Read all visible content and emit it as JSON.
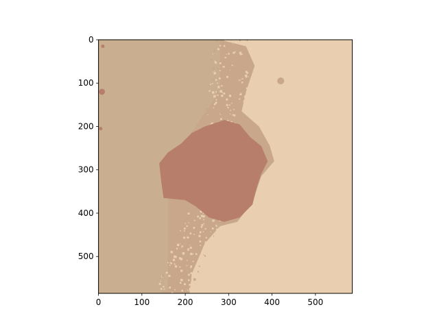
{
  "chart_data": {
    "type": "heatmap",
    "title": "",
    "xlabel": "",
    "ylabel": "",
    "xlim": [
      0,
      585
    ],
    "ylim": [
      585,
      0
    ],
    "xticks": [
      0,
      100,
      200,
      300,
      400,
      500
    ],
    "yticks": [
      0,
      100,
      200,
      300,
      400,
      500
    ],
    "grid": false,
    "legend": "none",
    "image_colors": {
      "left_band": "#c9ae90",
      "right_region": "#e9cfb0",
      "transition": "#c8a78a",
      "lesion_core": "#b77e6c"
    },
    "regions": {
      "left_band_right_edge": [
        [
          0,
          290
        ],
        [
          80,
          290
        ],
        [
          160,
          275
        ],
        [
          260,
          270
        ],
        [
          340,
          255
        ],
        [
          420,
          225
        ],
        [
          500,
          190
        ],
        [
          585,
          160
        ]
      ],
      "transition_halo": [
        [
          280,
          0
        ],
        [
          340,
          15
        ],
        [
          360,
          60
        ],
        [
          340,
          120
        ],
        [
          330,
          165
        ],
        [
          370,
          200
        ],
        [
          395,
          245
        ],
        [
          405,
          280
        ],
        [
          375,
          315
        ],
        [
          355,
          375
        ],
        [
          320,
          420
        ],
        [
          280,
          430
        ],
        [
          245,
          470
        ],
        [
          215,
          540
        ],
        [
          210,
          585
        ],
        [
          160,
          585
        ],
        [
          160,
          300
        ],
        [
          230,
          190
        ],
        [
          280,
          120
        ]
      ],
      "lesion_core": [
        [
          245,
          200
        ],
        [
          290,
          185
        ],
        [
          325,
          195
        ],
        [
          350,
          225
        ],
        [
          375,
          245
        ],
        [
          390,
          280
        ],
        [
          375,
          310
        ],
        [
          365,
          340
        ],
        [
          355,
          380
        ],
        [
          325,
          410
        ],
        [
          290,
          420
        ],
        [
          255,
          410
        ],
        [
          225,
          385
        ],
        [
          200,
          370
        ],
        [
          150,
          365
        ],
        [
          145,
          330
        ],
        [
          140,
          285
        ],
        [
          160,
          260
        ],
        [
          190,
          240
        ],
        [
          215,
          215
        ]
      ],
      "spots": [
        {
          "x": 420,
          "y": 95,
          "r": 8,
          "color": "transition"
        },
        {
          "x": 8,
          "y": 120,
          "r": 7,
          "color": "lesion_core"
        },
        {
          "x": 5,
          "y": 205,
          "r": 4,
          "color": "lesion_core"
        },
        {
          "x": 10,
          "y": 15,
          "r": 4,
          "color": "lesion_core"
        }
      ]
    }
  }
}
